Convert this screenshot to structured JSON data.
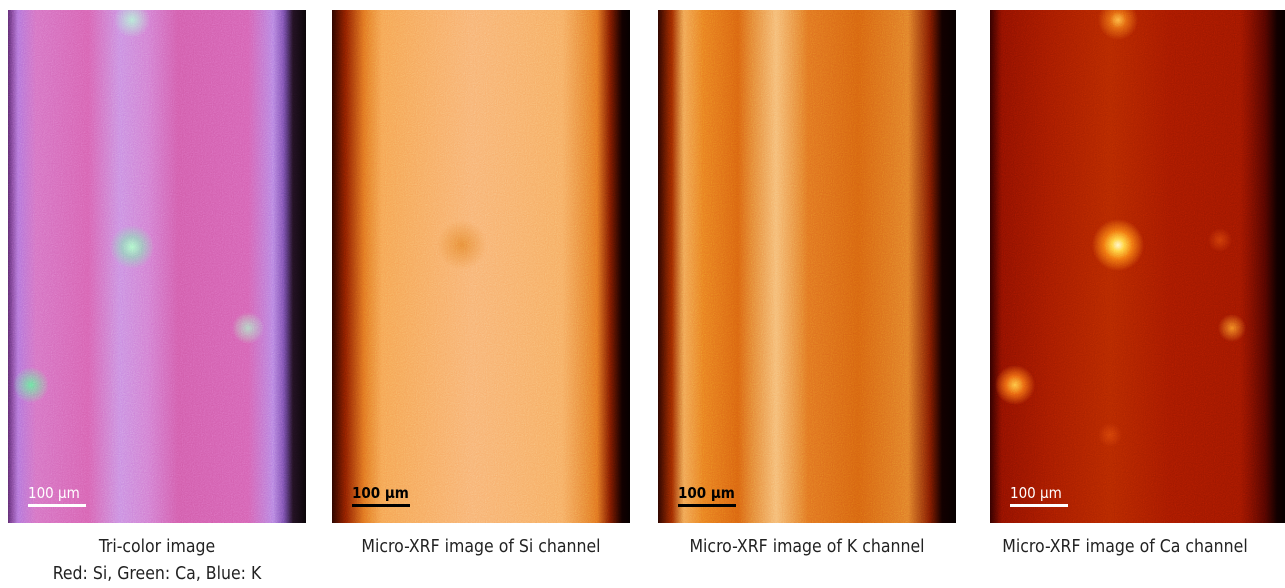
{
  "panels": [
    {
      "scale_bar": "100 µm",
      "caption": [
        "Tri-color image",
        "Red: Si, Green: Ca, Blue: K"
      ]
    },
    {
      "scale_bar": "100 µm",
      "caption": [
        "Micro-XRF image of Si channel"
      ]
    },
    {
      "scale_bar": "100 µm",
      "caption": [
        "Micro-XRF image of K channel"
      ]
    },
    {
      "scale_bar": "100 µm",
      "caption": [
        "Micro-XRF image of Ca channel"
      ]
    }
  ]
}
